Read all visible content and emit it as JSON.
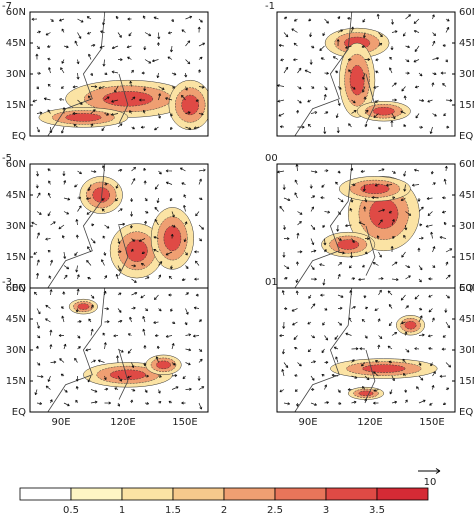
{
  "panels": [
    {
      "label": "-7"
    },
    {
      "label": "-1"
    },
    {
      "label": "-5"
    },
    {
      "label": "00"
    },
    {
      "label": "-3"
    },
    {
      "label": "01"
    }
  ],
  "latitude_labels": [
    "60N",
    "45N",
    "30N",
    "15N",
    "EQ"
  ],
  "longitude_labels": [
    "90E",
    "120E",
    "150E"
  ],
  "colorbar": {
    "colors": [
      "#ffffff",
      "#fef6c4",
      "#fbe3a4",
      "#f6c98c",
      "#ef9f72",
      "#e8755a",
      "#df4a45",
      "#d52a35"
    ],
    "ticks": [
      0.5,
      1,
      1.5,
      2,
      2.5,
      3,
      3.5
    ]
  },
  "reference_vector": {
    "label": "10"
  }
}
